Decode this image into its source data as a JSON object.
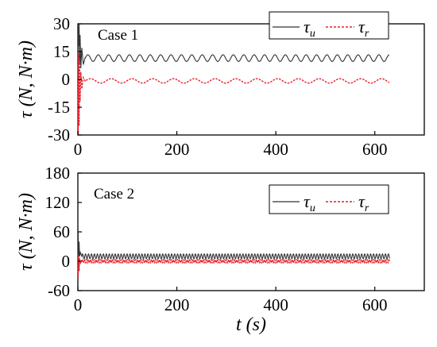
{
  "chart_data": [
    {
      "type": "line",
      "annotation": "Case 1",
      "ylabel": "τ (N, N·m)",
      "xlim": [
        0,
        700
      ],
      "ylim": [
        -30,
        30
      ],
      "x_ticks": [
        "0",
        "200",
        "400",
        "600"
      ],
      "y_ticks": [
        "-30",
        "-15",
        "0",
        "15",
        "30"
      ],
      "legend_position": "top-right",
      "legend": [
        "τ_u",
        "τ_r"
      ],
      "series": [
        {
          "name": "τ_u",
          "color": "#333333",
          "style": "solid",
          "x_range": [
            0,
            630
          ],
          "transient": [
            [
              0,
              0
            ],
            [
              0.7,
              29
            ],
            [
              1.5,
              18
            ],
            [
              2.5,
              30
            ],
            [
              3.5,
              8
            ],
            [
              4.5,
              24
            ],
            [
              6,
              6
            ],
            [
              8,
              17
            ],
            [
              11,
              8
            ],
            [
              15,
              12
            ]
          ],
          "steady_mean": 11.5,
          "steady_amplitude": 1.8,
          "period": 21
        },
        {
          "name": "τ_r",
          "color": "#e8202a",
          "style": "dashed",
          "x_range": [
            0,
            630
          ],
          "transient": [
            [
              0,
              0
            ],
            [
              0.7,
              -30
            ],
            [
              1.5,
              14
            ],
            [
              2.5,
              -25
            ],
            [
              3.5,
              10
            ],
            [
              4.5,
              -12
            ],
            [
              6,
              4
            ],
            [
              8,
              -5
            ],
            [
              11,
              1
            ],
            [
              15,
              -1
            ]
          ],
          "steady_mean": -0.8,
          "steady_amplitude": 1.2,
          "period": 42
        }
      ]
    },
    {
      "type": "line",
      "annotation": "Case 2",
      "ylabel": "τ (N, N·m)",
      "xlabel": "t (s)",
      "xlim": [
        0,
        700
      ],
      "ylim": [
        -60,
        180
      ],
      "x_ticks": [
        "0",
        "200",
        "400",
        "600"
      ],
      "y_ticks": [
        "-60",
        "0",
        "60",
        "120",
        "180"
      ],
      "legend_position": "top-right",
      "legend": [
        "τ_u",
        "τ_r"
      ],
      "series": [
        {
          "name": "τ_u",
          "color": "#333333",
          "style": "solid",
          "x_range": [
            0,
            630
          ],
          "transient": [
            [
              0,
              0
            ],
            [
              0.7,
              60
            ],
            [
              1.5,
              5
            ],
            [
              2.5,
              40
            ],
            [
              3.5,
              10
            ],
            [
              5,
              18
            ],
            [
              8,
              10
            ]
          ],
          "steady_mean": 10,
          "steady_amplitude": 5,
          "period": 6
        },
        {
          "name": "τ_r",
          "color": "#e8202a",
          "style": "dashed",
          "x_range": [
            0,
            630
          ],
          "transient": [
            [
              0,
              0
            ],
            [
              0.7,
              -35
            ],
            [
              1.5,
              12
            ],
            [
              2.5,
              -20
            ],
            [
              3.5,
              6
            ],
            [
              5,
              -4
            ],
            [
              8,
              1
            ]
          ],
          "steady_mean": 0,
          "steady_amplitude": 3.5,
          "period": 4
        }
      ]
    }
  ]
}
